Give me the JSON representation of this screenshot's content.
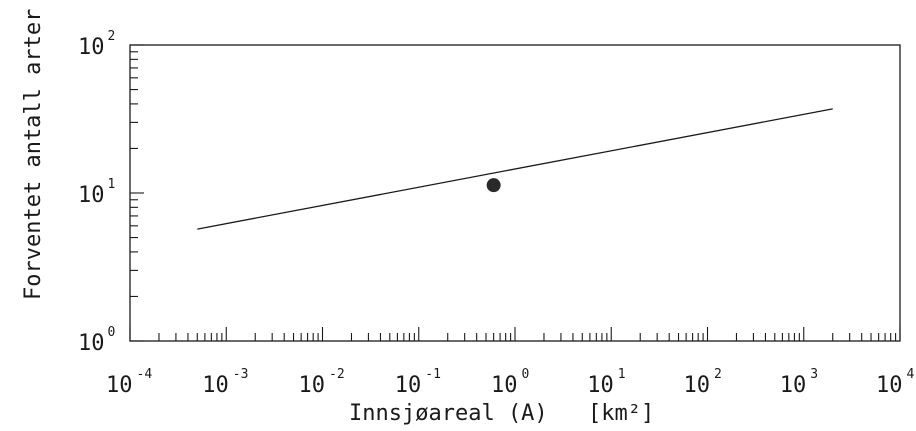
{
  "chart_data": {
    "type": "line",
    "xlabel": "Innsjøareal (A)",
    "xunit": "[km²]",
    "ylabel": "Forventet antall arter (S)",
    "x_scale": "log",
    "y_scale": "log",
    "xlim": [
      0.0001,
      10000
    ],
    "ylim": [
      1,
      100
    ],
    "x_ticks": [
      {
        "base": "10",
        "exp": "-4",
        "value": 0.0001
      },
      {
        "base": "10",
        "exp": "-3",
        "value": 0.001
      },
      {
        "base": "10",
        "exp": "-2",
        "value": 0.01
      },
      {
        "base": "10",
        "exp": "-1",
        "value": 0.1
      },
      {
        "base": "10",
        "exp": "0",
        "value": 1
      },
      {
        "base": "10",
        "exp": "1",
        "value": 10
      },
      {
        "base": "10",
        "exp": "2",
        "value": 100
      },
      {
        "base": "10",
        "exp": "3",
        "value": 1000
      },
      {
        "base": "10",
        "exp": "4",
        "value": 10000
      }
    ],
    "y_ticks": [
      {
        "base": "10",
        "exp": "0",
        "value": 1
      },
      {
        "base": "10",
        "exp": "1",
        "value": 10
      },
      {
        "base": "10",
        "exp": "2",
        "value": 100
      }
    ],
    "grid": false,
    "series": [
      {
        "kind": "line",
        "color": "#1a1a1a",
        "points": [
          {
            "x": 0.0005,
            "y": 5.7
          },
          {
            "x": 2000,
            "y": 37
          }
        ]
      },
      {
        "kind": "point",
        "color": "#2a2a2a",
        "points": [
          {
            "x": 0.6,
            "y": 11.3
          }
        ]
      }
    ]
  }
}
